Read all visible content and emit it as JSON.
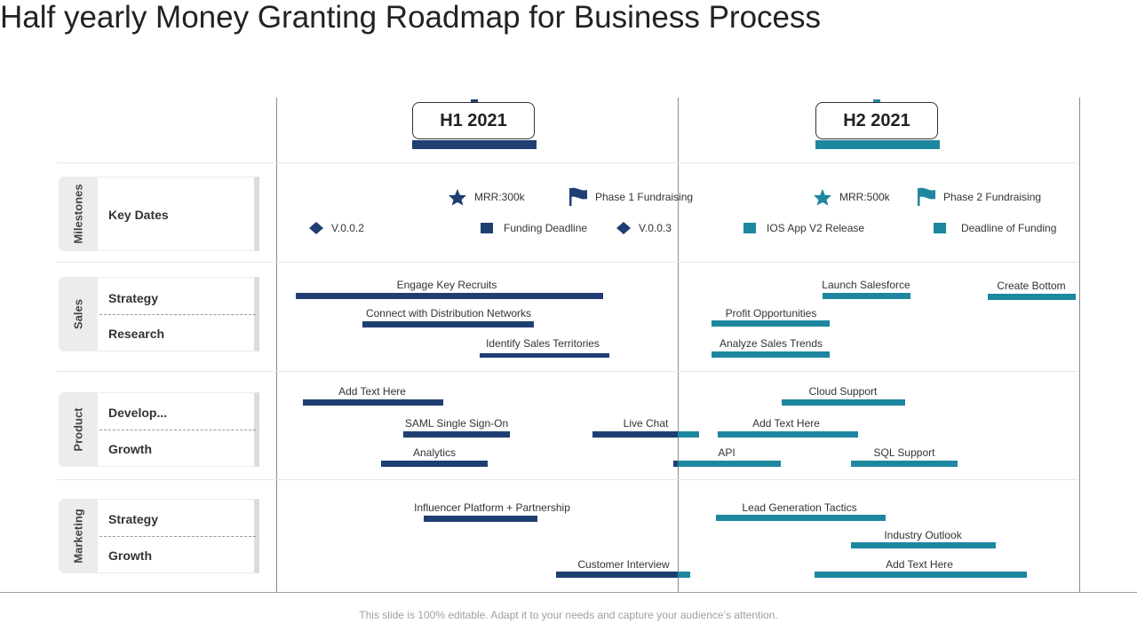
{
  "title": "Half yearly Money Granting Roadmap for Business Process",
  "colors": {
    "dark": "#1f3f73",
    "teal": "#1d87a0"
  },
  "periods": [
    {
      "label": "H1 2021",
      "color": "#1f3f73"
    },
    {
      "label": "H2 2021",
      "color": "#1d87a0"
    }
  ],
  "rows": {
    "milestones": {
      "tab": "Milestones",
      "sub": [
        "Key Dates"
      ]
    },
    "sales": {
      "tab": "Sales",
      "sub": [
        "Strategy",
        "Research"
      ]
    },
    "product": {
      "tab": "Product",
      "sub": [
        "Develop...",
        "Growth"
      ]
    },
    "marketing": {
      "tab": "Marketing",
      "sub": [
        "Strategy",
        "Growth"
      ]
    }
  },
  "milestones": [
    {
      "icon": "star-icon",
      "label": "MRR:300k",
      "color": "#1f3f73"
    },
    {
      "icon": "flag-icon",
      "label": "Phase 1 Fundraising",
      "color": "#1f3f73"
    },
    {
      "icon": "star-icon",
      "label": "MRR:500k",
      "color": "#1d87a0"
    },
    {
      "icon": "flag-icon",
      "label": "Phase 2 Fundraising",
      "color": "#1d87a0"
    },
    {
      "icon": "diamond-icon",
      "label": "V.0.0.2",
      "color": "#1f3f73"
    },
    {
      "icon": "square-icon",
      "label": "Funding Deadline",
      "color": "#1f3f73"
    },
    {
      "icon": "diamond-icon",
      "label": "V.0.0.3",
      "color": "#1f3f73"
    },
    {
      "icon": "square-icon",
      "label": "IOS App V2 Release",
      "color": "#1d87a0"
    },
    {
      "icon": "square-icon",
      "label": "Deadline of Funding",
      "color": "#1d87a0"
    }
  ],
  "tasks": [
    {
      "label": "Engage Key Recruits",
      "color": "dark"
    },
    {
      "label": "Connect with Distribution Networks",
      "color": "dark"
    },
    {
      "label": "Identify Sales Territories",
      "color": "dark"
    },
    {
      "label": "Launch Salesforce",
      "color": "teal"
    },
    {
      "label": "Create Bottom",
      "color": "teal"
    },
    {
      "label": "Profit Opportunities",
      "color": "teal"
    },
    {
      "label": "Analyze  Sales Trends",
      "color": "teal"
    },
    {
      "label": "Add Text Here",
      "color": "dark"
    },
    {
      "label": "SAML  Single Sign-On",
      "color": "dark"
    },
    {
      "label": "Live Chat",
      "color": "dark"
    },
    {
      "label": "Analytics",
      "color": "dark"
    },
    {
      "label": "Cloud Support",
      "color": "teal"
    },
    {
      "label": "Add Text Here",
      "color": "teal"
    },
    {
      "label": "API",
      "color": "teal"
    },
    {
      "label": "SQL Support",
      "color": "teal"
    },
    {
      "label": "Influencer Platform + Partnership",
      "color": "dark"
    },
    {
      "label": "Customer Interview",
      "color": "dark"
    },
    {
      "label": "Lead Generation Tactics",
      "color": "teal"
    },
    {
      "label": "Industry Outlook",
      "color": "teal"
    },
    {
      "label": "Add Text Here",
      "color": "teal"
    }
  ],
  "footer": "This slide is 100% editable. Adapt it to your needs and capture your audience’s attention."
}
